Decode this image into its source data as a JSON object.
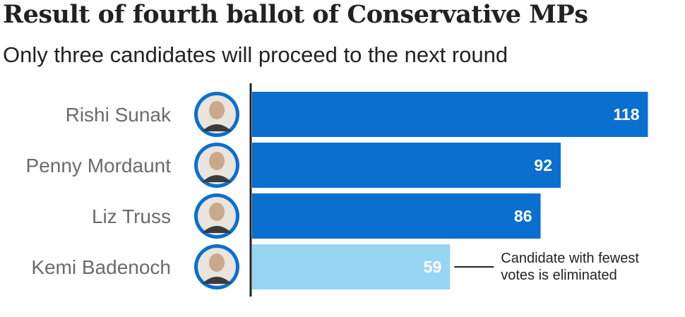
{
  "title": "Result of fourth ballot of Conservative MPs",
  "subtitle": "Only three candidates will proceed to the next round",
  "colors": {
    "bar": "#0a6fcf",
    "bar_eliminated": "#98d5f3",
    "avatar_ring": "#0a6fcf"
  },
  "chart_data": {
    "type": "bar",
    "orientation": "horizontal",
    "title": "Result of fourth ballot of Conservative MPs",
    "subtitle": "Only three candidates will proceed to the next round",
    "categories": [
      "Rishi Sunak",
      "Penny Mordaunt",
      "Liz Truss",
      "Kemi Badenoch"
    ],
    "values": [
      118,
      92,
      86,
      59
    ],
    "eliminated": [
      false,
      false,
      false,
      true
    ],
    "xlim": [
      0,
      120
    ],
    "annotation": {
      "target": "Kemi Badenoch",
      "lines": [
        "Candidate with fewest",
        "votes is eliminated"
      ]
    }
  }
}
